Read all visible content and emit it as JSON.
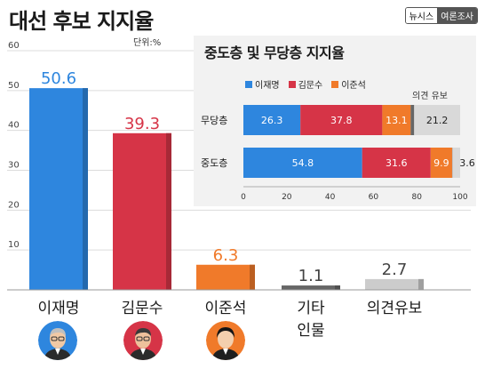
{
  "title": "대선 후보 지지율",
  "unit": "단위:%",
  "source": {
    "agency": "뉴시스",
    "label": "여론조사"
  },
  "colors": {
    "lee": "#2e86de",
    "kim": "#d63447",
    "joon": "#f07a2a",
    "other": "#666666",
    "undecided": "#cccccc"
  },
  "chart_data": [
    {
      "type": "bar",
      "categories": [
        "이재명",
        "김문수",
        "이준석",
        "기타|인물",
        "의견유보"
      ],
      "values": [
        50.6,
        39.3,
        6.3,
        1.1,
        2.7
      ],
      "value_labels": [
        "50.6",
        "39.3",
        "6.3",
        "1.1",
        "2.7"
      ],
      "colors": [
        "#2e86de",
        "#d63447",
        "#f07a2a",
        "#666666",
        "#cccccc"
      ],
      "ylim": [
        0,
        60
      ],
      "yticks": [
        10,
        20,
        30,
        40,
        50,
        60
      ],
      "avatars": [
        "lee",
        "kim",
        "joon"
      ]
    },
    {
      "type": "bar",
      "orientation": "horizontal-stacked",
      "title": "중도층 및 무당층 지지율",
      "legend": [
        "이재명",
        "김문수",
        "이준석"
      ],
      "extra_label": "의견 유보",
      "categories": [
        "무당층",
        "중도층"
      ],
      "series": [
        {
          "name": "이재명",
          "values": [
            26.3,
            54.8
          ],
          "color": "#2e86de"
        },
        {
          "name": "김문수",
          "values": [
            37.8,
            31.6
          ],
          "color": "#d63447"
        },
        {
          "name": "이준석",
          "values": [
            13.1,
            9.9
          ],
          "color": "#f07a2a"
        },
        {
          "values": [
            1.6,
            0.1
          ],
          "color": "#666666"
        },
        {
          "values": [
            21.2,
            3.6
          ],
          "color": "#d9d9d9"
        }
      ],
      "value_labels": [
        [
          "26.3",
          "54.8"
        ],
        [
          "37.8",
          "31.6"
        ],
        [
          "13.1",
          "9.9"
        ],
        [
          "",
          ""
        ],
        [
          "21.2",
          "3.6"
        ]
      ],
      "xlim": [
        0,
        100
      ],
      "xticks": [
        0,
        20,
        40,
        60,
        80,
        100
      ]
    }
  ]
}
